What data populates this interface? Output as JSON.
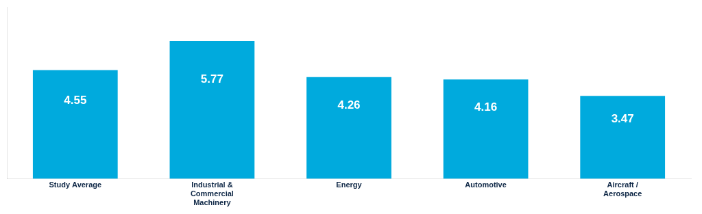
{
  "chart_data": {
    "type": "bar",
    "categories": [
      "Study Average",
      "Industrial &\nCommercial\nMachinery",
      "Energy",
      "Automotive",
      "Aircraft /\nAerospace"
    ],
    "values": [
      4.55,
      5.77,
      4.26,
      4.16,
      3.47
    ],
    "color": "#00aadd",
    "ylim": [
      0,
      7.2
    ],
    "grid": false,
    "data_labels": true,
    "tick_labels": "x"
  }
}
